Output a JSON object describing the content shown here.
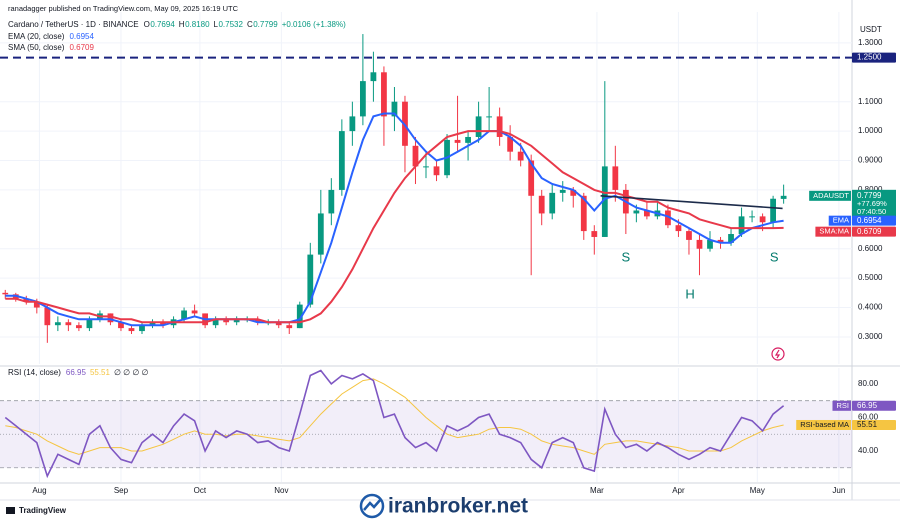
{
  "header": {
    "published": "ranadagger published on TradingView.com, May 09, 2025 16:19 UTC"
  },
  "footer": {
    "brand": "TradingView"
  },
  "watermark": "iranbroker.net",
  "chart_data": [
    {
      "type": "candlestick",
      "title": "Cardano / TetherUS · 1D · BINANCE",
      "ohlc_labels": [
        {
          "label": "O",
          "value": "0.7694"
        },
        {
          "label": "H",
          "value": "0.8180"
        },
        {
          "label": "L",
          "value": "0.7532"
        },
        {
          "label": "C",
          "value": "0.7799"
        }
      ],
      "change": "+0.0106 (+1.38%)",
      "axis_unit": "USDT",
      "up_color": "#089981",
      "down_color": "#f23645",
      "categories": [
        null,
        null,
        null,
        null,
        null,
        null,
        null,
        null,
        null,
        null,
        null,
        null,
        null,
        null,
        null,
        null,
        null,
        null,
        null,
        null,
        null,
        null,
        null,
        null,
        null,
        null,
        null,
        null,
        null,
        null,
        null,
        null,
        null,
        null,
        null,
        null,
        null,
        null,
        null,
        null,
        null,
        null,
        null,
        null,
        null,
        null,
        null,
        null,
        null,
        null,
        null,
        null,
        null,
        null,
        null,
        null,
        null,
        null,
        null,
        null,
        null,
        null,
        null,
        null,
        null,
        null,
        null,
        null,
        null,
        null,
        null,
        null,
        null,
        null,
        null
      ],
      "open": [
        0.45,
        0.445,
        0.43,
        0.42,
        0.4,
        0.34,
        0.35,
        0.34,
        0.33,
        0.36,
        0.38,
        0.35,
        0.33,
        0.32,
        0.34,
        0.35,
        0.34,
        0.36,
        0.39,
        0.38,
        0.34,
        0.36,
        0.35,
        0.36,
        0.36,
        0.35,
        0.35,
        0.34,
        0.33,
        0.41,
        0.58,
        0.72,
        0.8,
        1.0,
        1.05,
        1.17,
        1.2,
        1.05,
        1.1,
        0.95,
        0.88,
        0.88,
        0.85,
        0.97,
        0.96,
        0.98,
        1.05,
        1.05,
        0.98,
        0.93,
        0.9,
        0.78,
        0.72,
        0.79,
        0.8,
        0.78,
        0.66,
        0.64,
        0.88,
        0.8,
        0.72,
        0.73,
        0.71,
        0.73,
        0.68,
        0.66,
        0.63,
        0.6,
        0.63,
        0.62,
        0.65,
        0.71,
        0.71,
        0.69,
        0.7694
      ],
      "high": [
        0.46,
        0.45,
        0.44,
        0.43,
        0.41,
        0.37,
        0.36,
        0.35,
        0.37,
        0.39,
        0.38,
        0.36,
        0.34,
        0.35,
        0.36,
        0.36,
        0.37,
        0.4,
        0.41,
        0.38,
        0.37,
        0.37,
        0.37,
        0.37,
        0.37,
        0.36,
        0.36,
        0.35,
        0.42,
        0.62,
        0.8,
        0.84,
        1.04,
        1.1,
        1.33,
        1.27,
        1.22,
        1.15,
        1.12,
        0.98,
        0.93,
        0.9,
        0.99,
        1.12,
        1.0,
        1.1,
        1.15,
        1.08,
        1.02,
        0.96,
        0.92,
        0.8,
        0.82,
        0.83,
        0.81,
        0.79,
        0.68,
        1.17,
        0.95,
        0.82,
        0.75,
        0.76,
        0.76,
        0.75,
        0.7,
        0.67,
        0.65,
        0.66,
        0.64,
        0.67,
        0.74,
        0.73,
        0.72,
        0.78,
        0.818
      ],
      "low": [
        0.43,
        0.42,
        0.41,
        0.38,
        0.28,
        0.32,
        0.32,
        0.32,
        0.32,
        0.35,
        0.34,
        0.32,
        0.31,
        0.31,
        0.33,
        0.33,
        0.33,
        0.35,
        0.37,
        0.33,
        0.33,
        0.34,
        0.34,
        0.35,
        0.34,
        0.34,
        0.33,
        0.31,
        0.33,
        0.4,
        0.55,
        0.68,
        0.78,
        0.95,
        1.02,
        1.1,
        0.95,
        1.0,
        0.86,
        0.82,
        0.84,
        0.83,
        0.84,
        0.93,
        0.9,
        0.96,
        1.0,
        0.95,
        0.9,
        0.88,
        0.51,
        0.68,
        0.7,
        0.76,
        0.74,
        0.63,
        0.58,
        0.64,
        0.76,
        0.65,
        0.69,
        0.7,
        0.7,
        0.67,
        0.64,
        0.58,
        0.51,
        0.59,
        0.6,
        0.61,
        0.64,
        0.69,
        0.66,
        0.67,
        0.7532
      ],
      "close": [
        0.445,
        0.43,
        0.42,
        0.4,
        0.34,
        0.35,
        0.34,
        0.33,
        0.36,
        0.38,
        0.35,
        0.33,
        0.32,
        0.34,
        0.35,
        0.34,
        0.36,
        0.39,
        0.38,
        0.34,
        0.36,
        0.35,
        0.36,
        0.36,
        0.35,
        0.35,
        0.34,
        0.33,
        0.41,
        0.58,
        0.72,
        0.8,
        1.0,
        1.05,
        1.17,
        1.2,
        1.05,
        1.1,
        0.95,
        0.88,
        0.88,
        0.85,
        0.97,
        0.96,
        0.98,
        1.05,
        1.05,
        0.98,
        0.93,
        0.9,
        0.78,
        0.72,
        0.79,
        0.8,
        0.78,
        0.66,
        0.64,
        0.88,
        0.8,
        0.72,
        0.73,
        0.71,
        0.73,
        0.68,
        0.66,
        0.63,
        0.6,
        0.63,
        0.62,
        0.65,
        0.71,
        0.71,
        0.69,
        0.77,
        0.7799
      ],
      "series": [
        {
          "name": "EMA (20, close)",
          "tag": "EMA",
          "last_label": "0.6954",
          "color": "#2962ff",
          "values": [
            0.44,
            0.44,
            0.43,
            0.42,
            0.4,
            0.38,
            0.37,
            0.36,
            0.36,
            0.36,
            0.36,
            0.35,
            0.34,
            0.34,
            0.34,
            0.34,
            0.35,
            0.36,
            0.37,
            0.36,
            0.36,
            0.36,
            0.36,
            0.36,
            0.35,
            0.35,
            0.35,
            0.35,
            0.36,
            0.42,
            0.52,
            0.62,
            0.74,
            0.86,
            0.97,
            1.05,
            1.06,
            1.06,
            1.02,
            0.97,
            0.93,
            0.9,
            0.91,
            0.93,
            0.95,
            0.97,
            1.0,
            1.0,
            0.98,
            0.95,
            0.89,
            0.84,
            0.82,
            0.81,
            0.8,
            0.77,
            0.73,
            0.77,
            0.78,
            0.76,
            0.74,
            0.73,
            0.72,
            0.71,
            0.69,
            0.67,
            0.65,
            0.63,
            0.62,
            0.62,
            0.65,
            0.67,
            0.68,
            0.69,
            0.6954
          ]
        },
        {
          "name": "SMA (50, close)",
          "tag": "SMA:MA",
          "last_label": "0.6709",
          "color": "#e8394a",
          "values": [
            0.43,
            0.43,
            0.42,
            0.42,
            0.41,
            0.4,
            0.39,
            0.38,
            0.38,
            0.37,
            0.37,
            0.36,
            0.36,
            0.35,
            0.35,
            0.35,
            0.35,
            0.35,
            0.35,
            0.35,
            0.36,
            0.36,
            0.36,
            0.36,
            0.36,
            0.35,
            0.35,
            0.35,
            0.35,
            0.36,
            0.38,
            0.42,
            0.47,
            0.53,
            0.6,
            0.67,
            0.73,
            0.79,
            0.84,
            0.88,
            0.92,
            0.95,
            0.98,
            0.99,
            1.0,
            1.0,
            1.0,
            1.0,
            0.99,
            0.97,
            0.95,
            0.92,
            0.89,
            0.86,
            0.84,
            0.82,
            0.8,
            0.79,
            0.79,
            0.78,
            0.77,
            0.76,
            0.76,
            0.74,
            0.73,
            0.72,
            0.7,
            0.69,
            0.68,
            0.67,
            0.67,
            0.67,
            0.67,
            0.67,
            0.6709
          ]
        }
      ],
      "price_tag": {
        "symbol": "ADAUSDT",
        "price": "0.7799",
        "change": "+77.69%",
        "countdown": "07:40:50",
        "color": "#089981"
      },
      "hline": {
        "value": 1.25,
        "label": "1.2500",
        "color": "#1a237e"
      },
      "trendline": {
        "x": [
          56.6,
          73.9
        ],
        "y": [
          0.78,
          0.737
        ],
        "color": "#1c2b4a"
      },
      "annotations": [
        {
          "text": "S",
          "x": 59.0,
          "y": 0.569
        },
        {
          "text": "H",
          "x": 65.1,
          "y": 0.443
        },
        {
          "text": "S",
          "x": 73.1,
          "y": 0.569
        }
      ],
      "annotation_color": "#00796b",
      "xlim": [
        -0.5,
        80.5
      ],
      "xticks": [
        {
          "value": 3.25,
          "label": "Aug"
        },
        {
          "value": 11,
          "label": "Sep"
        },
        {
          "value": 18.5,
          "label": "Oct"
        },
        {
          "value": 26.25,
          "label": "Nov"
        },
        {
          "value": 56.25,
          "label": "Mar"
        },
        {
          "value": 64,
          "label": "Apr"
        },
        {
          "value": 71.5,
          "label": "May"
        },
        {
          "value": 79.25,
          "label": "Jun"
        }
      ],
      "ylim": [
        0.208,
        1.371
      ],
      "yticks": [
        {
          "value": 0.3,
          "label": "0.3000"
        },
        {
          "value": 0.4,
          "label": "0.4000"
        },
        {
          "value": 0.5,
          "label": "0.5000"
        },
        {
          "value": 0.6,
          "label": "0.6000"
        },
        {
          "value": 0.8,
          "label": "0.8000"
        },
        {
          "value": 0.9,
          "label": "0.9000"
        },
        {
          "value": 1.0,
          "label": "1.0000"
        },
        {
          "value": 1.1,
          "label": "1.1000"
        },
        {
          "value": 1.3,
          "label": "1.3000"
        }
      ],
      "grid": true
    },
    {
      "type": "line",
      "title": "RSI (14, close)",
      "header_values": [
        "66.95",
        "55.51",
        "∅ ∅ ∅ ∅"
      ],
      "series": [
        {
          "name": "RSI",
          "last_label": "66.95",
          "color": "#7e57c2",
          "values": [
            60,
            55,
            50,
            45,
            25,
            38,
            35,
            32,
            50,
            55,
            42,
            35,
            33,
            45,
            50,
            45,
            55,
            62,
            58,
            40,
            52,
            48,
            52,
            50,
            45,
            46,
            42,
            40,
            62,
            85,
            88,
            80,
            85,
            83,
            86,
            82,
            60,
            62,
            48,
            42,
            45,
            40,
            55,
            52,
            55,
            60,
            62,
            50,
            48,
            45,
            35,
            30,
            45,
            48,
            45,
            30,
            28,
            65,
            50,
            42,
            44,
            40,
            45,
            42,
            38,
            35,
            38,
            42,
            40,
            50,
            60,
            58,
            52,
            62,
            66.95
          ]
        },
        {
          "name": "RSI-based MA",
          "last_label": "55.51",
          "color": "#f5c542",
          "values": [
            55,
            54,
            52,
            50,
            46,
            43,
            40,
            38,
            40,
            42,
            42,
            42,
            40,
            40,
            42,
            44,
            47,
            50,
            52,
            50,
            50,
            49,
            50,
            50,
            49,
            48,
            47,
            46,
            48,
            55,
            62,
            68,
            74,
            78,
            82,
            83,
            80,
            76,
            72,
            66,
            60,
            55,
            50,
            48,
            49,
            50,
            53,
            54,
            54,
            53,
            50,
            46,
            44,
            43,
            42,
            40,
            38,
            44,
            45,
            46,
            46,
            45,
            44,
            43,
            42,
            40,
            40,
            40,
            40,
            42,
            46,
            49,
            52,
            54,
            55.51
          ]
        }
      ],
      "bands": {
        "upper": 70,
        "middle": 50,
        "lower": 30,
        "fill": "#7e57c2"
      },
      "ylim": [
        21.5,
        89.5
      ],
      "yticks": [
        {
          "value": 40,
          "label": "40.00"
        },
        {
          "value": 60,
          "label": "60.00"
        },
        {
          "value": 80,
          "label": "80.00"
        }
      ]
    }
  ]
}
